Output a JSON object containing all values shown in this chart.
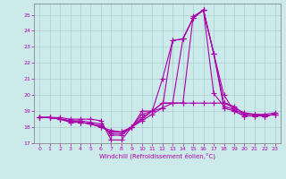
{
  "xlabel": "Windchill (Refroidissement éolien,°C)",
  "ylabel": "",
  "background_color": "#cceaea",
  "grid_color": "#aacccc",
  "line_color": "#aa00aa",
  "marker": "+",
  "markersize": 4.0,
  "linewidth": 0.8,
  "xlim": [
    -0.5,
    23.5
  ],
  "ylim": [
    17,
    25.7
  ],
  "yticks": [
    17,
    18,
    19,
    20,
    21,
    22,
    23,
    24,
    25
  ],
  "xticks": [
    0,
    1,
    2,
    3,
    4,
    5,
    6,
    7,
    8,
    9,
    10,
    11,
    12,
    13,
    14,
    15,
    16,
    17,
    18,
    19,
    20,
    21,
    22,
    23
  ],
  "series": [
    [
      18.6,
      18.6,
      18.6,
      18.5,
      18.5,
      18.5,
      18.4,
      17.2,
      17.2,
      18.0,
      19.0,
      19.0,
      19.5,
      19.5,
      19.5,
      24.9,
      25.3,
      20.1,
      19.3,
      19.1,
      18.8,
      18.8,
      18.8,
      18.9
    ],
    [
      18.6,
      18.6,
      18.5,
      18.4,
      18.4,
      18.3,
      18.2,
      17.5,
      17.5,
      18.0,
      18.8,
      19.0,
      19.2,
      23.4,
      23.5,
      24.8,
      25.3,
      22.6,
      19.5,
      19.2,
      18.9,
      18.8,
      18.7,
      18.8
    ],
    [
      18.6,
      18.6,
      18.5,
      18.4,
      18.3,
      18.2,
      18.1,
      17.6,
      17.6,
      18.0,
      18.6,
      19.0,
      21.0,
      23.4,
      23.5,
      24.8,
      25.3,
      22.6,
      19.2,
      19.0,
      18.7,
      18.7,
      18.7,
      18.8
    ],
    [
      18.6,
      18.6,
      18.5,
      18.4,
      18.3,
      18.2,
      18.0,
      17.7,
      17.7,
      18.0,
      18.5,
      19.0,
      19.5,
      19.5,
      23.5,
      24.8,
      25.3,
      22.6,
      20.0,
      19.0,
      18.7,
      18.7,
      18.7,
      18.8
    ],
    [
      18.6,
      18.6,
      18.5,
      18.3,
      18.3,
      18.2,
      18.0,
      17.8,
      17.7,
      18.0,
      18.4,
      18.8,
      19.2,
      19.5,
      19.5,
      19.5,
      19.5,
      19.5,
      19.5,
      19.3,
      18.8,
      18.8,
      18.7,
      18.8
    ]
  ]
}
